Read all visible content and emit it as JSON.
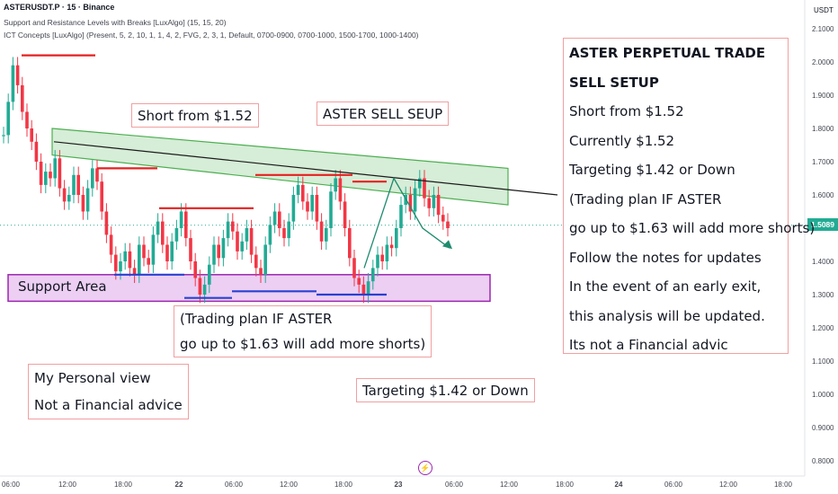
{
  "header": {
    "symbol": "ASTERUSDT.P · 15 · Binance",
    "indicator1": "Support and Resistance Levels with Breaks [LuxAlgo] (15, 15, 20)",
    "indicator2": "ICT Concepts [LuxAlgo] (Present, 5, 2, 10, 1, 1, 4, 2, FVG, 2, 3, 1, Default, 0700-0900, 0700-1000, 1500-1700, 1000-1400)"
  },
  "chart_data": {
    "type": "line",
    "price_unit": "USDT",
    "last_price": "1.5089",
    "x_ticks": [
      "06:00",
      "12:00",
      "18:00",
      "22",
      "06:00",
      "12:00",
      "18:00",
      "23",
      "06:00",
      "12:00",
      "18:00",
      "24",
      "06:00",
      "12:00",
      "18:00"
    ],
    "y_ticks": [
      "2.1000",
      "2.0000",
      "1.9000",
      "1.8000",
      "1.7000",
      "1.6000",
      "1.5000",
      "1.4000",
      "1.3000",
      "1.2000",
      "1.1000",
      "1.0000",
      "0.9000",
      "0.8000"
    ],
    "ylim": [
      0.77,
      2.13
    ],
    "series": [
      {
        "values": [
          1.78,
          1.88,
          1.99,
          1.93,
          1.85,
          1.8,
          1.76,
          1.7,
          1.63,
          1.67,
          1.65,
          1.71,
          1.62,
          1.58,
          1.6,
          1.66,
          1.6,
          1.55,
          1.62,
          1.68,
          1.64,
          1.55,
          1.48,
          1.42,
          1.37,
          1.4,
          1.43,
          1.38,
          1.36,
          1.45,
          1.41,
          1.39,
          1.48,
          1.52,
          1.45,
          1.4,
          1.46,
          1.5,
          1.55,
          1.47,
          1.4,
          1.35,
          1.3,
          1.33,
          1.39,
          1.45,
          1.41,
          1.47,
          1.52,
          1.49,
          1.43,
          1.46,
          1.5,
          1.42,
          1.38,
          1.36,
          1.45,
          1.51,
          1.55,
          1.5,
          1.47,
          1.52,
          1.6,
          1.63,
          1.58,
          1.55,
          1.6,
          1.52,
          1.46,
          1.5,
          1.61,
          1.65,
          1.58,
          1.5,
          1.41,
          1.35,
          1.33,
          1.3,
          1.34,
          1.38,
          1.42,
          1.4,
          1.45,
          1.44,
          1.5,
          1.57,
          1.6,
          1.55,
          1.62,
          1.65,
          1.59,
          1.56,
          1.6,
          1.54,
          1.52,
          1.5
        ]
      }
    ],
    "levels": {
      "resistance": [
        2.02,
        1.68,
        1.56,
        1.66,
        1.64
      ],
      "support": [
        1.36,
        1.29,
        1.31,
        1.3
      ]
    },
    "channel": {
      "x_start": 0,
      "x_end": 93,
      "upper": [
        1.8,
        1.68
      ],
      "lower": [
        1.72,
        1.57
      ]
    },
    "trendline": {
      "x_start": 0,
      "x_end": 105,
      "values": [
        1.76,
        1.6
      ]
    },
    "support_zone": [
      1.28,
      1.36
    ],
    "projection": [
      1.65,
      1.5,
      1.44
    ]
  },
  "annotations": {
    "top_right": [
      "ASTER PERPETUAL TRADE",
      "SELL SETUP",
      "Short from $1.52",
      "Currently $1.52",
      "Targeting $1.42 or Down",
      "(Trading plan IF ASTER",
      "go up to $1.63 will add more shorts)",
      "Follow the notes for updates",
      "In the event of an early exit,",
      "this analysis will be updated.",
      "Its not a Financial advic"
    ],
    "short_from": "Short from $1.52",
    "sell_setup": "ASTER SELL SEUP",
    "support_area": "Support Area",
    "trading_plan": [
      "(Trading plan IF ASTER",
      "go up to $1.63 will add more shorts)"
    ],
    "personal_view": [
      "My Personal view",
      "Not a Financial advice"
    ],
    "targeting": "Targeting $1.42 or Down"
  },
  "colors": {
    "bull": "#22ab94",
    "bear": "#f23645",
    "resistance": "#e62020",
    "support": "#2940d3",
    "channel_fill": "#a5d6a7",
    "channel_stroke": "#4caf50",
    "zone_fill": "#e7c3f0",
    "zone_stroke": "#9c27b0",
    "trend": "#1b1b1b",
    "projection": "#1e8c6e"
  },
  "icons": {
    "alert": "lightning-icon"
  }
}
